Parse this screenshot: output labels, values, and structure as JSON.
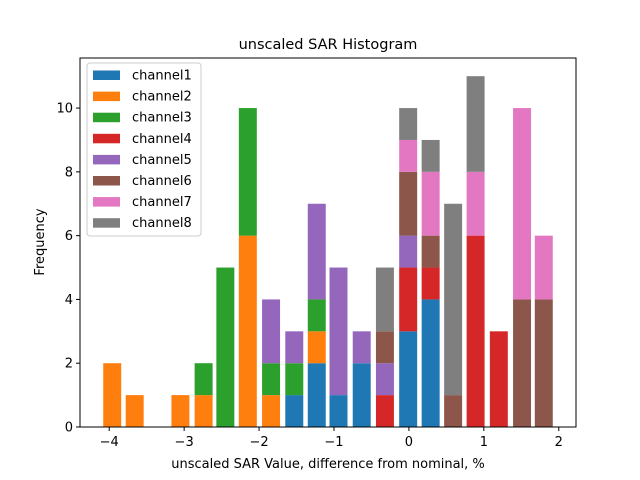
{
  "chart_data": {
    "type": "bar",
    "subtype": "stacked-histogram",
    "title": "unscaled SAR Histogram",
    "xlabel": "unscaled SAR Value, difference from nominal, %",
    "ylabel": "Frequency",
    "xlim": [
      -4.39,
      2.23
    ],
    "ylim": [
      0,
      11.57
    ],
    "xticks": [
      -4,
      -3,
      -2,
      -1,
      0,
      1,
      2
    ],
    "xtick_labels": [
      "−4",
      "−3",
      "−2",
      "−1",
      "0",
      "1",
      "2"
    ],
    "yticks": [
      0,
      2,
      4,
      6,
      8,
      10
    ],
    "ytick_labels": [
      "0",
      "2",
      "4",
      "6",
      "8",
      "10"
    ],
    "grid": false,
    "legend_position": "top-left",
    "bin_width": 0.304,
    "bar_width": 0.24,
    "x": [
      -3.96,
      -3.66,
      -3.05,
      -2.74,
      -2.45,
      -2.15,
      -1.84,
      -1.53,
      -1.23,
      -0.94,
      -0.63,
      -0.32,
      -0.01,
      0.29,
      0.59,
      0.89,
      1.2,
      1.51,
      1.8
    ],
    "series": [
      {
        "name": "channel1",
        "color": "#1f77b4",
        "values": [
          0,
          0,
          0,
          0,
          0,
          0,
          0,
          1,
          2,
          1,
          2,
          0,
          3,
          4,
          0,
          0,
          0,
          0,
          0
        ]
      },
      {
        "name": "channel2",
        "color": "#ff7f0e",
        "values": [
          2,
          1,
          1,
          1,
          0,
          6,
          1,
          0,
          1,
          0,
          0,
          0,
          0,
          0,
          0,
          0,
          0,
          0,
          0
        ]
      },
      {
        "name": "channel3",
        "color": "#2ca02c",
        "values": [
          0,
          0,
          0,
          1,
          5,
          4,
          1,
          1,
          1,
          0,
          0,
          0,
          0,
          0,
          0,
          0,
          0,
          0,
          0
        ]
      },
      {
        "name": "channel4",
        "color": "#d62728",
        "values": [
          0,
          0,
          0,
          0,
          0,
          0,
          0,
          0,
          0,
          0,
          0,
          1,
          2,
          1,
          0,
          6,
          3,
          0,
          0
        ]
      },
      {
        "name": "channel5",
        "color": "#9467bd",
        "values": [
          0,
          0,
          0,
          0,
          0,
          0,
          2,
          1,
          3,
          4,
          1,
          1,
          1,
          0,
          0,
          0,
          0,
          0,
          0
        ]
      },
      {
        "name": "channel6",
        "color": "#8c564b",
        "values": [
          0,
          0,
          0,
          0,
          0,
          0,
          0,
          0,
          0,
          0,
          0,
          1,
          2,
          1,
          1,
          0,
          0,
          4,
          4
        ]
      },
      {
        "name": "channel7",
        "color": "#e377c2",
        "values": [
          0,
          0,
          0,
          0,
          0,
          0,
          0,
          0,
          0,
          0,
          0,
          0,
          1,
          2,
          0,
          2,
          0,
          6,
          2
        ]
      },
      {
        "name": "channel8",
        "color": "#7f7f7f",
        "values": [
          0,
          0,
          0,
          0,
          0,
          0,
          0,
          0,
          0,
          0,
          0,
          2,
          1,
          1,
          6,
          3,
          0,
          0,
          0
        ]
      }
    ]
  }
}
